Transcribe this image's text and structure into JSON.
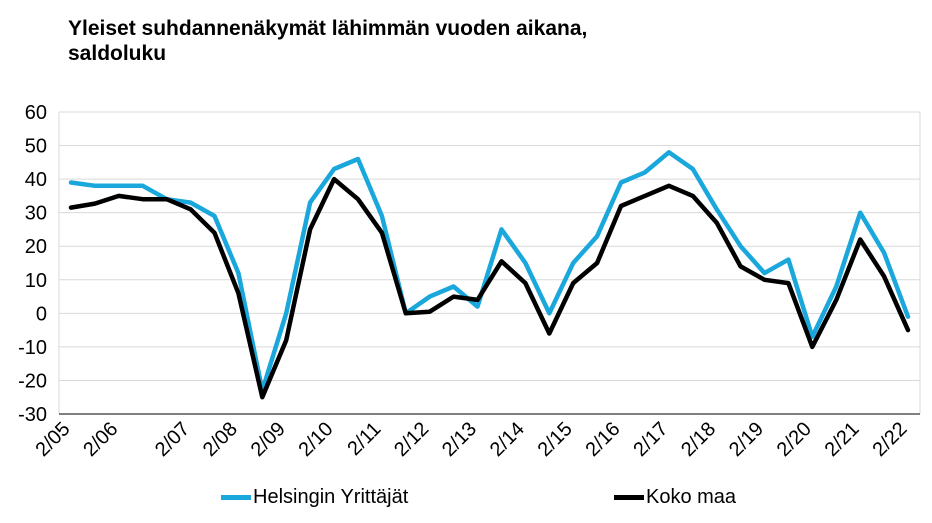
{
  "title_line1": "Yleiset suhdannenäkymät lähimmän vuoden aikana,",
  "title_line2": "saldoluku",
  "colors": {
    "series1": "#1AA7DC",
    "series2": "#000000",
    "grid": "#d9d9d9",
    "axis": "#000000"
  },
  "chart_data": {
    "type": "line",
    "title": "Yleiset suhdannenäkymät lähimmän vuoden aikana, saldoluku",
    "xlabel": "",
    "ylabel": "",
    "ylim": [
      -30,
      60
    ],
    "yticks": [
      60,
      50,
      40,
      30,
      20,
      10,
      0,
      -10,
      -20,
      -30
    ],
    "grid": true,
    "legend": "bottom",
    "tick_labels": [
      "2/05",
      "2/06",
      "2/07",
      "2/08",
      "2/09",
      "2/10",
      "2/11",
      "2/12",
      "2/13",
      "2/14",
      "2/15",
      "2/16",
      "2/17",
      "2/18",
      "2/19",
      "2/20",
      "2/21",
      "2/22"
    ],
    "tick_index": [
      0,
      2,
      5,
      7,
      9,
      11,
      13,
      15,
      17,
      19,
      21,
      23,
      25,
      27,
      29,
      31,
      33,
      35
    ],
    "x_count": 36,
    "series": [
      {
        "name": "Helsingin Yrittäjät",
        "values": [
          39,
          38,
          38,
          38,
          34,
          33,
          29,
          12,
          -23,
          0,
          33,
          43,
          46,
          29,
          0,
          5,
          8,
          2,
          25,
          15,
          0,
          15,
          23,
          39,
          42,
          48,
          43,
          31,
          20,
          12,
          16,
          -7,
          8,
          30,
          18,
          -1
        ]
      },
      {
        "name": "Koko maa",
        "values": [
          31.5,
          32.7,
          35,
          34,
          34,
          31,
          24,
          6,
          -25,
          -8,
          25,
          40,
          34,
          24,
          0,
          0.5,
          5,
          4,
          15.5,
          9,
          -6,
          9,
          15,
          32,
          35,
          38,
          35,
          27,
          14,
          10,
          9,
          -10,
          4,
          22,
          11,
          -5
        ]
      }
    ]
  }
}
